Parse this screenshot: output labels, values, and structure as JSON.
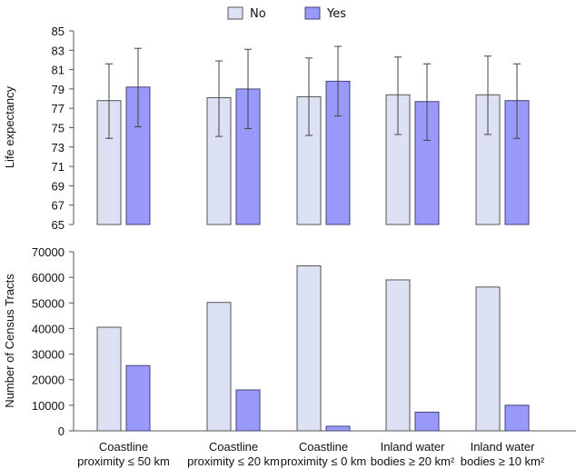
{
  "legend": {
    "items": [
      {
        "label": "No",
        "color": "#dce1f3",
        "stroke": "#555555"
      },
      {
        "label": "Yes",
        "color": "#9999f9",
        "stroke": "#444477"
      }
    ]
  },
  "chart_data": [
    {
      "type": "bar",
      "title": "",
      "xlabel": "",
      "ylabel": "Life expectancy",
      "ylim": [
        65,
        85
      ],
      "yticks": [
        65,
        67,
        69,
        71,
        73,
        75,
        77,
        79,
        81,
        83,
        85
      ],
      "categories": [
        "Coastline proximity ≤ 50 km",
        "Coastline proximity ≤ 20 km",
        "Coastline proximity ≤ 0 km",
        "Inland water bodies ≥ 20 km²",
        "Inland water bodies ≥ 10 km²"
      ],
      "series": [
        {
          "name": "No",
          "values": [
            77.8,
            78.1,
            78.2,
            78.4,
            78.4
          ],
          "error_low": [
            73.9,
            74.1,
            74.2,
            74.3,
            74.3
          ],
          "error_high": [
            81.6,
            81.9,
            82.2,
            82.3,
            82.4
          ]
        },
        {
          "name": "Yes",
          "values": [
            79.2,
            79.0,
            79.8,
            77.7,
            77.8
          ],
          "error_low": [
            75.1,
            74.9,
            76.2,
            73.7,
            73.9
          ],
          "error_high": [
            83.2,
            83.1,
            83.4,
            81.6,
            81.6
          ]
        }
      ],
      "grid": false,
      "legend_position": "top-center"
    },
    {
      "type": "bar",
      "title": "",
      "xlabel": "",
      "ylabel": "Number of Census Tracts",
      "ylim": [
        0,
        70000
      ],
      "yticks": [
        0,
        10000,
        20000,
        30000,
        40000,
        50000,
        60000,
        70000
      ],
      "categories": [
        [
          "Coastline",
          "proximity ≤ 50 km"
        ],
        [
          "Coastline",
          "proximity ≤ 20 km"
        ],
        [
          "Coastline",
          "proximity ≤ 0 km"
        ],
        [
          "Inland water",
          "bodies ≥ 20 km²"
        ],
        [
          "Inland water",
          "bodies ≥ 10 km²"
        ]
      ],
      "series": [
        {
          "name": "No",
          "values": [
            40500,
            50200,
            64500,
            59000,
            56200
          ]
        },
        {
          "name": "Yes",
          "values": [
            25500,
            16000,
            1800,
            7300,
            10000
          ]
        }
      ],
      "grid": false
    }
  ]
}
